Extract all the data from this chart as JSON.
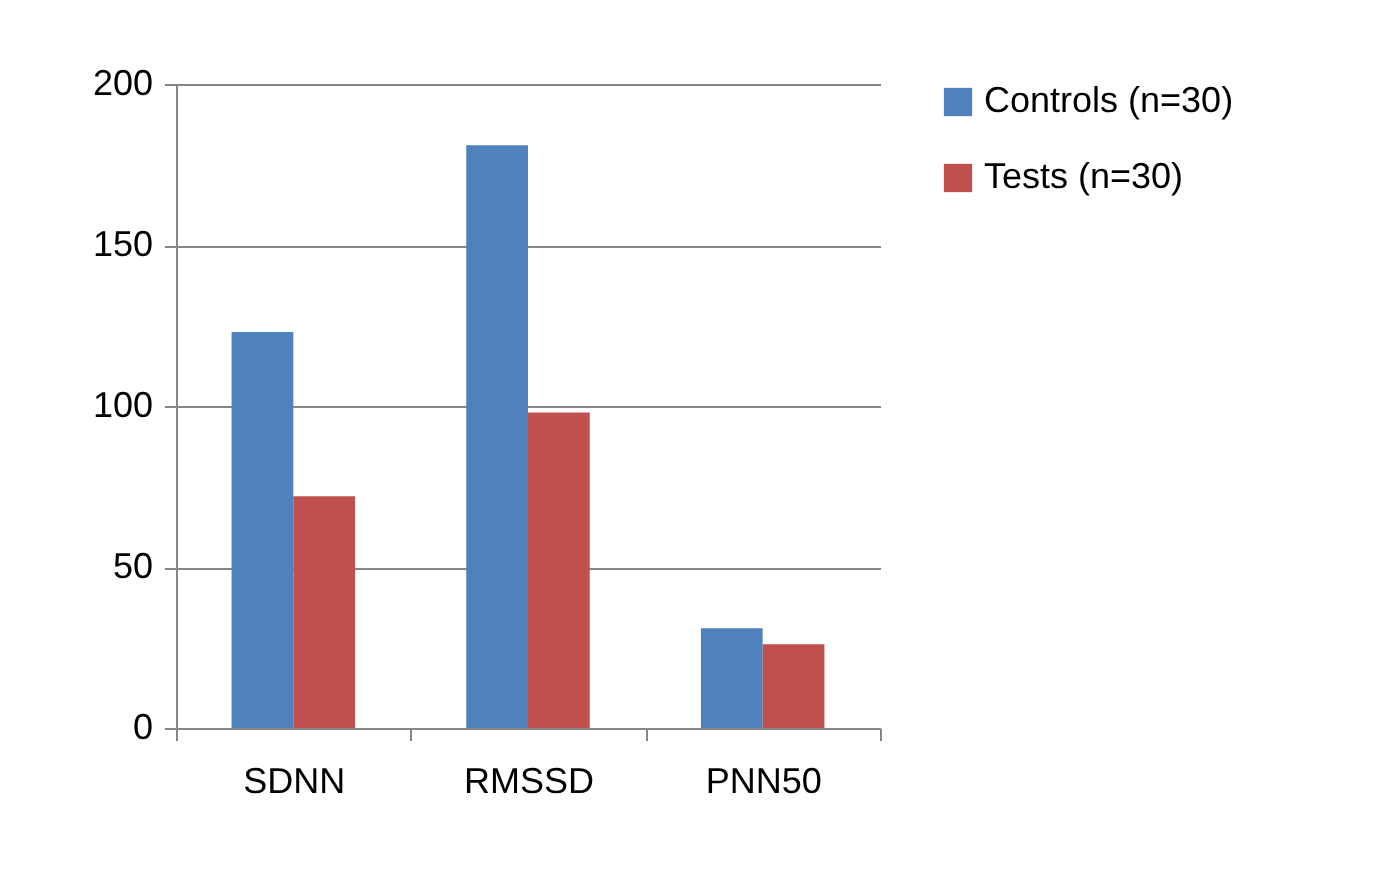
{
  "chart_data": {
    "type": "bar",
    "categories": [
      "SDNN",
      "RMSSD",
      "PNN50"
    ],
    "series": [
      {
        "name": "Controls (n=30)",
        "color": "#4f81bd",
        "values": [
          123,
          181,
          31
        ]
      },
      {
        "name": "Tests (n=30)",
        "color": "#c0504d",
        "values": [
          72,
          98,
          26
        ]
      }
    ],
    "ylim": [
      0,
      200
    ],
    "yticks": [
      0,
      50,
      100,
      150,
      200
    ],
    "grid": "y",
    "legend": "right"
  }
}
